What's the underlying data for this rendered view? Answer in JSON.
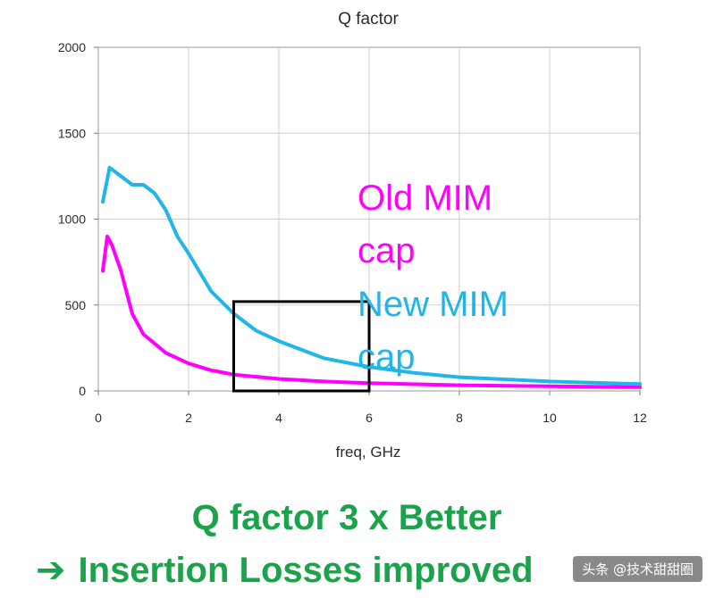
{
  "chart_data": {
    "type": "line",
    "title": "Q factor",
    "xlabel": "freq, GHz",
    "ylabel": "",
    "xlim": [
      0,
      12
    ],
    "ylim": [
      0,
      2000
    ],
    "x_ticks": [
      0,
      2,
      4,
      6,
      8,
      10,
      12
    ],
    "y_ticks": [
      0,
      500,
      1000,
      1500,
      2000
    ],
    "grid": true,
    "series": [
      {
        "name": "Old MIM cap",
        "color": "#ff00ff",
        "x": [
          0.1,
          0.2,
          0.3,
          0.5,
          0.75,
          1.0,
          1.5,
          2.0,
          2.5,
          3.0,
          4.0,
          5.0,
          6.0,
          8.0,
          10.0,
          12.0
        ],
        "y": [
          700,
          900,
          850,
          700,
          450,
          330,
          220,
          160,
          120,
          95,
          70,
          55,
          45,
          33,
          27,
          22
        ]
      },
      {
        "name": "New MIM cap",
        "color": "#21b5e8",
        "x": [
          0.1,
          0.25,
          0.5,
          0.75,
          1.0,
          1.25,
          1.5,
          1.75,
          2.0,
          2.5,
          3.0,
          3.5,
          4.0,
          5.0,
          6.0,
          7.0,
          8.0,
          10.0,
          12.0
        ],
        "y": [
          1100,
          1300,
          1250,
          1200,
          1200,
          1150,
          1050,
          900,
          800,
          580,
          450,
          350,
          290,
          190,
          140,
          105,
          80,
          55,
          40
        ]
      }
    ],
    "annotations": [
      {
        "text_lines": [
          "Old MIM",
          "cap"
        ],
        "color": "#ff00ff"
      },
      {
        "text_lines": [
          "New MIM",
          "cap"
        ],
        "color": "#21b5e8"
      }
    ],
    "highlight_box": {
      "x": [
        3,
        6
      ],
      "y": [
        0,
        520
      ]
    }
  },
  "headline": {
    "line1": "Q factor 3 x Better",
    "arrow": "➔",
    "line2": "Insertion Losses improved"
  },
  "watermark": "头条 @技术甜甜圈"
}
